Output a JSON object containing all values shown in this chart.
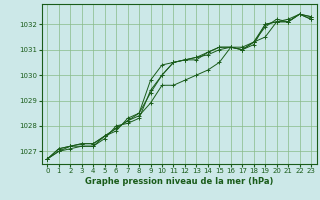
{
  "background_color": "#cce8e8",
  "plot_bg_color": "#cce8e8",
  "grid_color": "#88bb88",
  "line_color": "#1a5c1a",
  "title": "Graphe pression niveau de la mer (hPa)",
  "ylim": [
    1026.5,
    1032.8
  ],
  "xlim": [
    -0.5,
    23.5
  ],
  "yticks": [
    1027,
    1028,
    1029,
    1030,
    1031,
    1032
  ],
  "xticks": [
    0,
    1,
    2,
    3,
    4,
    5,
    6,
    7,
    8,
    9,
    10,
    11,
    12,
    13,
    14,
    15,
    16,
    17,
    18,
    19,
    20,
    21,
    22,
    23
  ],
  "series": [
    [
      1026.7,
      1027.1,
      1027.2,
      1027.3,
      1027.3,
      1027.6,
      1027.8,
      1028.3,
      1028.5,
      1029.8,
      1030.4,
      1030.5,
      1030.6,
      1030.6,
      1030.9,
      1031.1,
      1031.1,
      1031.0,
      1031.2,
      1032.0,
      1032.1,
      1032.1,
      1032.4,
      1032.2
    ],
    [
      1026.7,
      1027.0,
      1027.2,
      1027.2,
      1027.2,
      1027.6,
      1027.9,
      1028.2,
      1028.4,
      1028.9,
      1029.6,
      1029.6,
      1029.8,
      1030.0,
      1030.2,
      1030.5,
      1031.1,
      1031.1,
      1031.3,
      1031.5,
      1032.1,
      1032.2,
      1032.4,
      1032.3
    ],
    [
      1026.7,
      1027.0,
      1027.1,
      1027.2,
      1027.2,
      1027.5,
      1028.0,
      1028.1,
      1028.3,
      1029.4,
      1030.0,
      1030.5,
      1030.6,
      1030.7,
      1030.8,
      1031.0,
      1031.1,
      1031.0,
      1031.3,
      1031.9,
      1032.2,
      1032.1,
      1032.4,
      1032.2
    ],
    [
      1026.7,
      1027.1,
      1027.2,
      1027.3,
      1027.3,
      1027.6,
      1027.9,
      1028.2,
      1028.5,
      1029.3,
      1030.0,
      1030.5,
      1030.6,
      1030.7,
      1030.9,
      1031.1,
      1031.1,
      1031.0,
      1031.3,
      1032.0,
      1032.1,
      1032.1,
      1032.4,
      1032.3
    ]
  ]
}
